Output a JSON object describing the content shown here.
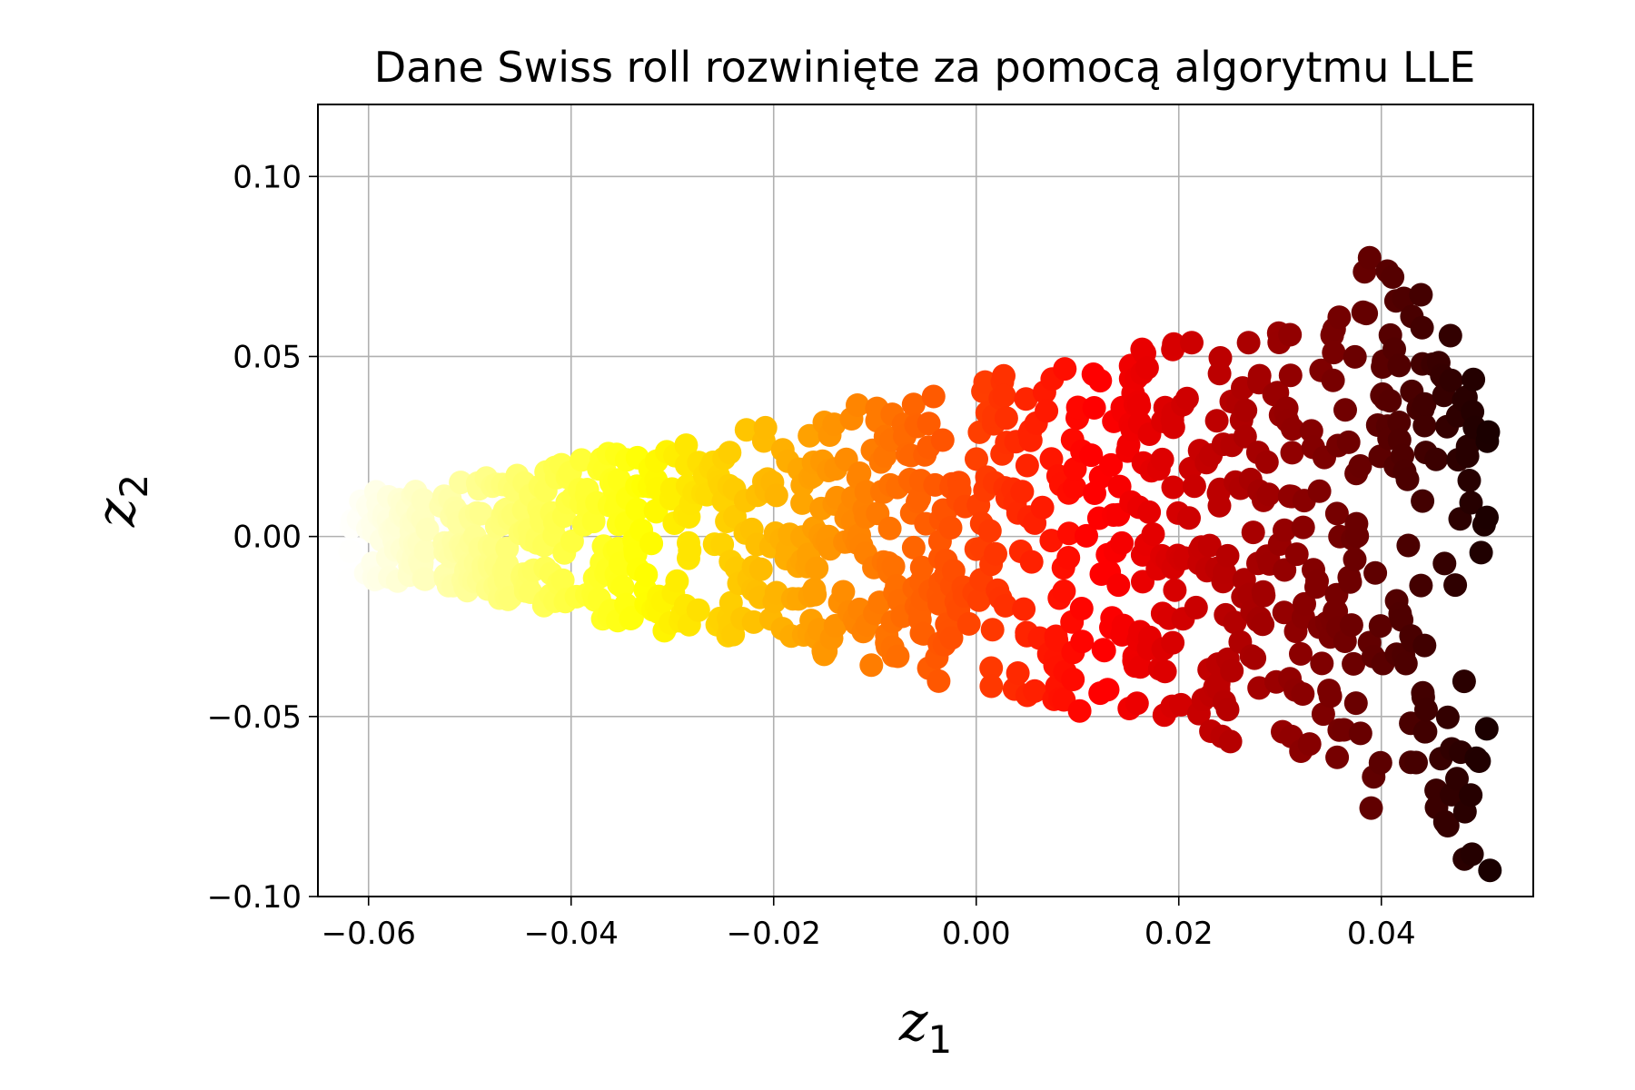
{
  "chart_data": {
    "type": "scatter",
    "title": "Dane Swiss roll rozwinięte za pomocą algorytmu LLE",
    "xlabel": "z",
    "xlabel_sub": "1",
    "ylabel": "z",
    "ylabel_sub": "2",
    "xlim": [
      -0.065,
      0.055
    ],
    "ylim": [
      -0.1,
      0.12
    ],
    "xticks": [
      -0.06,
      -0.04,
      -0.02,
      0.0,
      0.02,
      0.04
    ],
    "xtick_labels": [
      "−0.06",
      "−0.04",
      "−0.02",
      "0.00",
      "0.02",
      "0.04"
    ],
    "yticks": [
      -0.1,
      -0.05,
      0.0,
      0.05,
      0.1
    ],
    "ytick_labels": [
      "−0.10",
      "−0.05",
      "0.00",
      "0.05",
      "0.10"
    ],
    "grid": true,
    "colormap": "hot",
    "color_scale": "x",
    "point_count": 1000
  }
}
